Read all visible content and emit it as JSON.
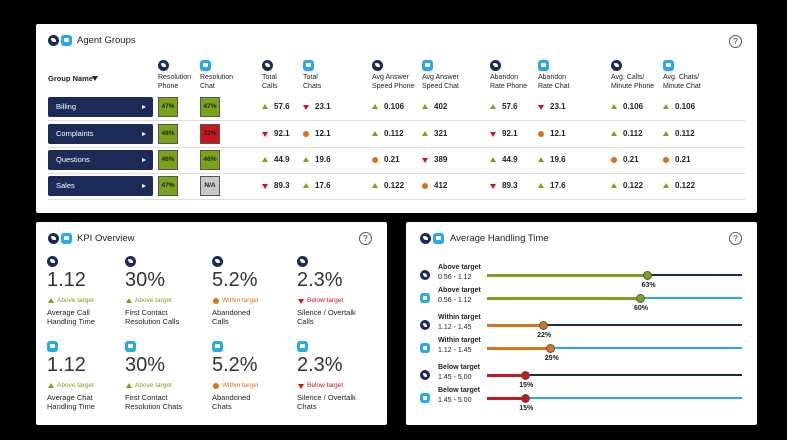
{
  "agent_groups": {
    "title": "Agent Groups",
    "help": "?",
    "group_header": "Group Name",
    "columns": [
      {
        "lines": [
          "Resolution",
          "Phone"
        ],
        "channel": "phone"
      },
      {
        "lines": [
          "Resolution",
          "Chat"
        ],
        "channel": "chat"
      },
      {
        "lines": [
          "Total",
          "Calls"
        ],
        "channel": "phone"
      },
      {
        "lines": [
          "Total",
          "Chats"
        ],
        "channel": "chat"
      },
      {
        "lines": [
          "Avg Answer",
          "Speed Phone"
        ],
        "channel": "phone"
      },
      {
        "lines": [
          "Avg Answer",
          "Speed Chat"
        ],
        "channel": "chat"
      },
      {
        "lines": [
          "Abandon",
          "Rate Phone"
        ],
        "channel": "phone"
      },
      {
        "lines": [
          "Abandon",
          "Rate Chat"
        ],
        "channel": "chat"
      },
      {
        "lines": [
          "Avg. Calls/",
          "Minute Phone"
        ],
        "channel": "phone"
      },
      {
        "lines": [
          "Avg. Chats/",
          "Minute Chat"
        ],
        "channel": "chat"
      }
    ],
    "rows": [
      {
        "name": "Billing",
        "cells": [
          {
            "text": "47%",
            "status": "good"
          },
          {
            "text": "47%",
            "status": "good"
          },
          {
            "text": "57.6",
            "status": "up"
          },
          {
            "text": "23.1",
            "status": "down"
          },
          {
            "text": "0.106",
            "status": "up"
          },
          {
            "text": "402",
            "status": "up"
          },
          {
            "text": "57.6",
            "status": "up"
          },
          {
            "text": "23.1",
            "status": "down"
          },
          {
            "text": "0.106",
            "status": "up"
          },
          {
            "text": "0.106",
            "status": "up"
          }
        ]
      },
      {
        "name": "Complaints",
        "cells": [
          {
            "text": "48%",
            "status": "good"
          },
          {
            "text": "32%",
            "status": "bad"
          },
          {
            "text": "92.1",
            "status": "down"
          },
          {
            "text": "12.1",
            "status": "flat"
          },
          {
            "text": "0.112",
            "status": "up"
          },
          {
            "text": "321",
            "status": "up"
          },
          {
            "text": "92.1",
            "status": "down"
          },
          {
            "text": "12.1",
            "status": "flat"
          },
          {
            "text": "0.112",
            "status": "up"
          },
          {
            "text": "0.112",
            "status": "up"
          }
        ]
      },
      {
        "name": "Questions",
        "cells": [
          {
            "text": "46%",
            "status": "good"
          },
          {
            "text": "46%",
            "status": "good"
          },
          {
            "text": "44.9",
            "status": "up"
          },
          {
            "text": "19.6",
            "status": "up"
          },
          {
            "text": "0.21",
            "status": "flat"
          },
          {
            "text": "389",
            "status": "down"
          },
          {
            "text": "44.9",
            "status": "up"
          },
          {
            "text": "19.6",
            "status": "up"
          },
          {
            "text": "0.21",
            "status": "flat"
          },
          {
            "text": "0.21",
            "status": "flat"
          }
        ]
      },
      {
        "name": "Sales",
        "cells": [
          {
            "text": "47%",
            "status": "good"
          },
          {
            "text": "N/A",
            "status": "na"
          },
          {
            "text": "89.3",
            "status": "down"
          },
          {
            "text": "17.6",
            "status": "up"
          },
          {
            "text": "0.122",
            "status": "up"
          },
          {
            "text": "412",
            "status": "flat"
          },
          {
            "text": "89.3",
            "status": "down"
          },
          {
            "text": "17.6",
            "status": "up"
          },
          {
            "text": "0.122",
            "status": "up"
          },
          {
            "text": "0.122",
            "status": "up"
          }
        ]
      }
    ]
  },
  "kpi_overview": {
    "title": "KPI Overview",
    "help": "?",
    "items": [
      {
        "channel": "phone",
        "value": "1.12",
        "status": "above",
        "status_label": "Above target",
        "label_lines": [
          "Average Call",
          "Handling Time"
        ]
      },
      {
        "channel": "phone",
        "value": "30%",
        "status": "above",
        "status_label": "Above target",
        "label_lines": [
          "First Contact",
          "Resolution Calls"
        ]
      },
      {
        "channel": "phone",
        "value": "5.2%",
        "status": "within",
        "status_label": "Within target",
        "label_lines": [
          "Abandoned",
          "Calls"
        ]
      },
      {
        "channel": "phone",
        "value": "2.3%",
        "status": "below",
        "status_label": "Below target",
        "label_lines": [
          "Silence / Overtalk",
          "Calls"
        ]
      },
      {
        "channel": "chat",
        "value": "1.12",
        "status": "above",
        "status_label": "Above target",
        "label_lines": [
          "Average Chat",
          "Handling Time"
        ]
      },
      {
        "channel": "chat",
        "value": "30%",
        "status": "above",
        "status_label": "Above target",
        "label_lines": [
          "First Contact",
          "Resolution Chats"
        ]
      },
      {
        "channel": "chat",
        "value": "5.2%",
        "status": "within",
        "status_label": "Within target",
        "label_lines": [
          "Abandoned",
          "Chats"
        ]
      },
      {
        "channel": "chat",
        "value": "2.3%",
        "status": "below",
        "status_label": "Below target",
        "label_lines": [
          "Silence / Overtalk",
          "Chats"
        ]
      }
    ]
  },
  "average_handling_time": {
    "title": "Average Handling Time",
    "help": "?",
    "rows": [
      {
        "channel": "phone",
        "label": "Above target",
        "range": "0.56 - 1.12",
        "value": 63,
        "value_label": "63%",
        "status": "above"
      },
      {
        "channel": "chat",
        "label": "Above target",
        "range": "0.56 - 1.12",
        "value": 60,
        "value_label": "60%",
        "status": "above"
      },
      {
        "channel": "phone",
        "label": "Within target",
        "range": "1.12 - 1.45",
        "value": 22,
        "value_label": "22%",
        "status": "within"
      },
      {
        "channel": "chat",
        "label": "Within target",
        "range": "1.12 - 1.45",
        "value": 25,
        "value_label": "25%",
        "status": "within"
      },
      {
        "channel": "phone",
        "label": "Below target",
        "range": "1.45 - 5.00",
        "value": 15,
        "value_label": "15%",
        "status": "below"
      },
      {
        "channel": "chat",
        "label": "Below target",
        "range": "1.45 - 5.00",
        "value": 15,
        "value_label": "15%",
        "status": "below"
      }
    ]
  }
}
